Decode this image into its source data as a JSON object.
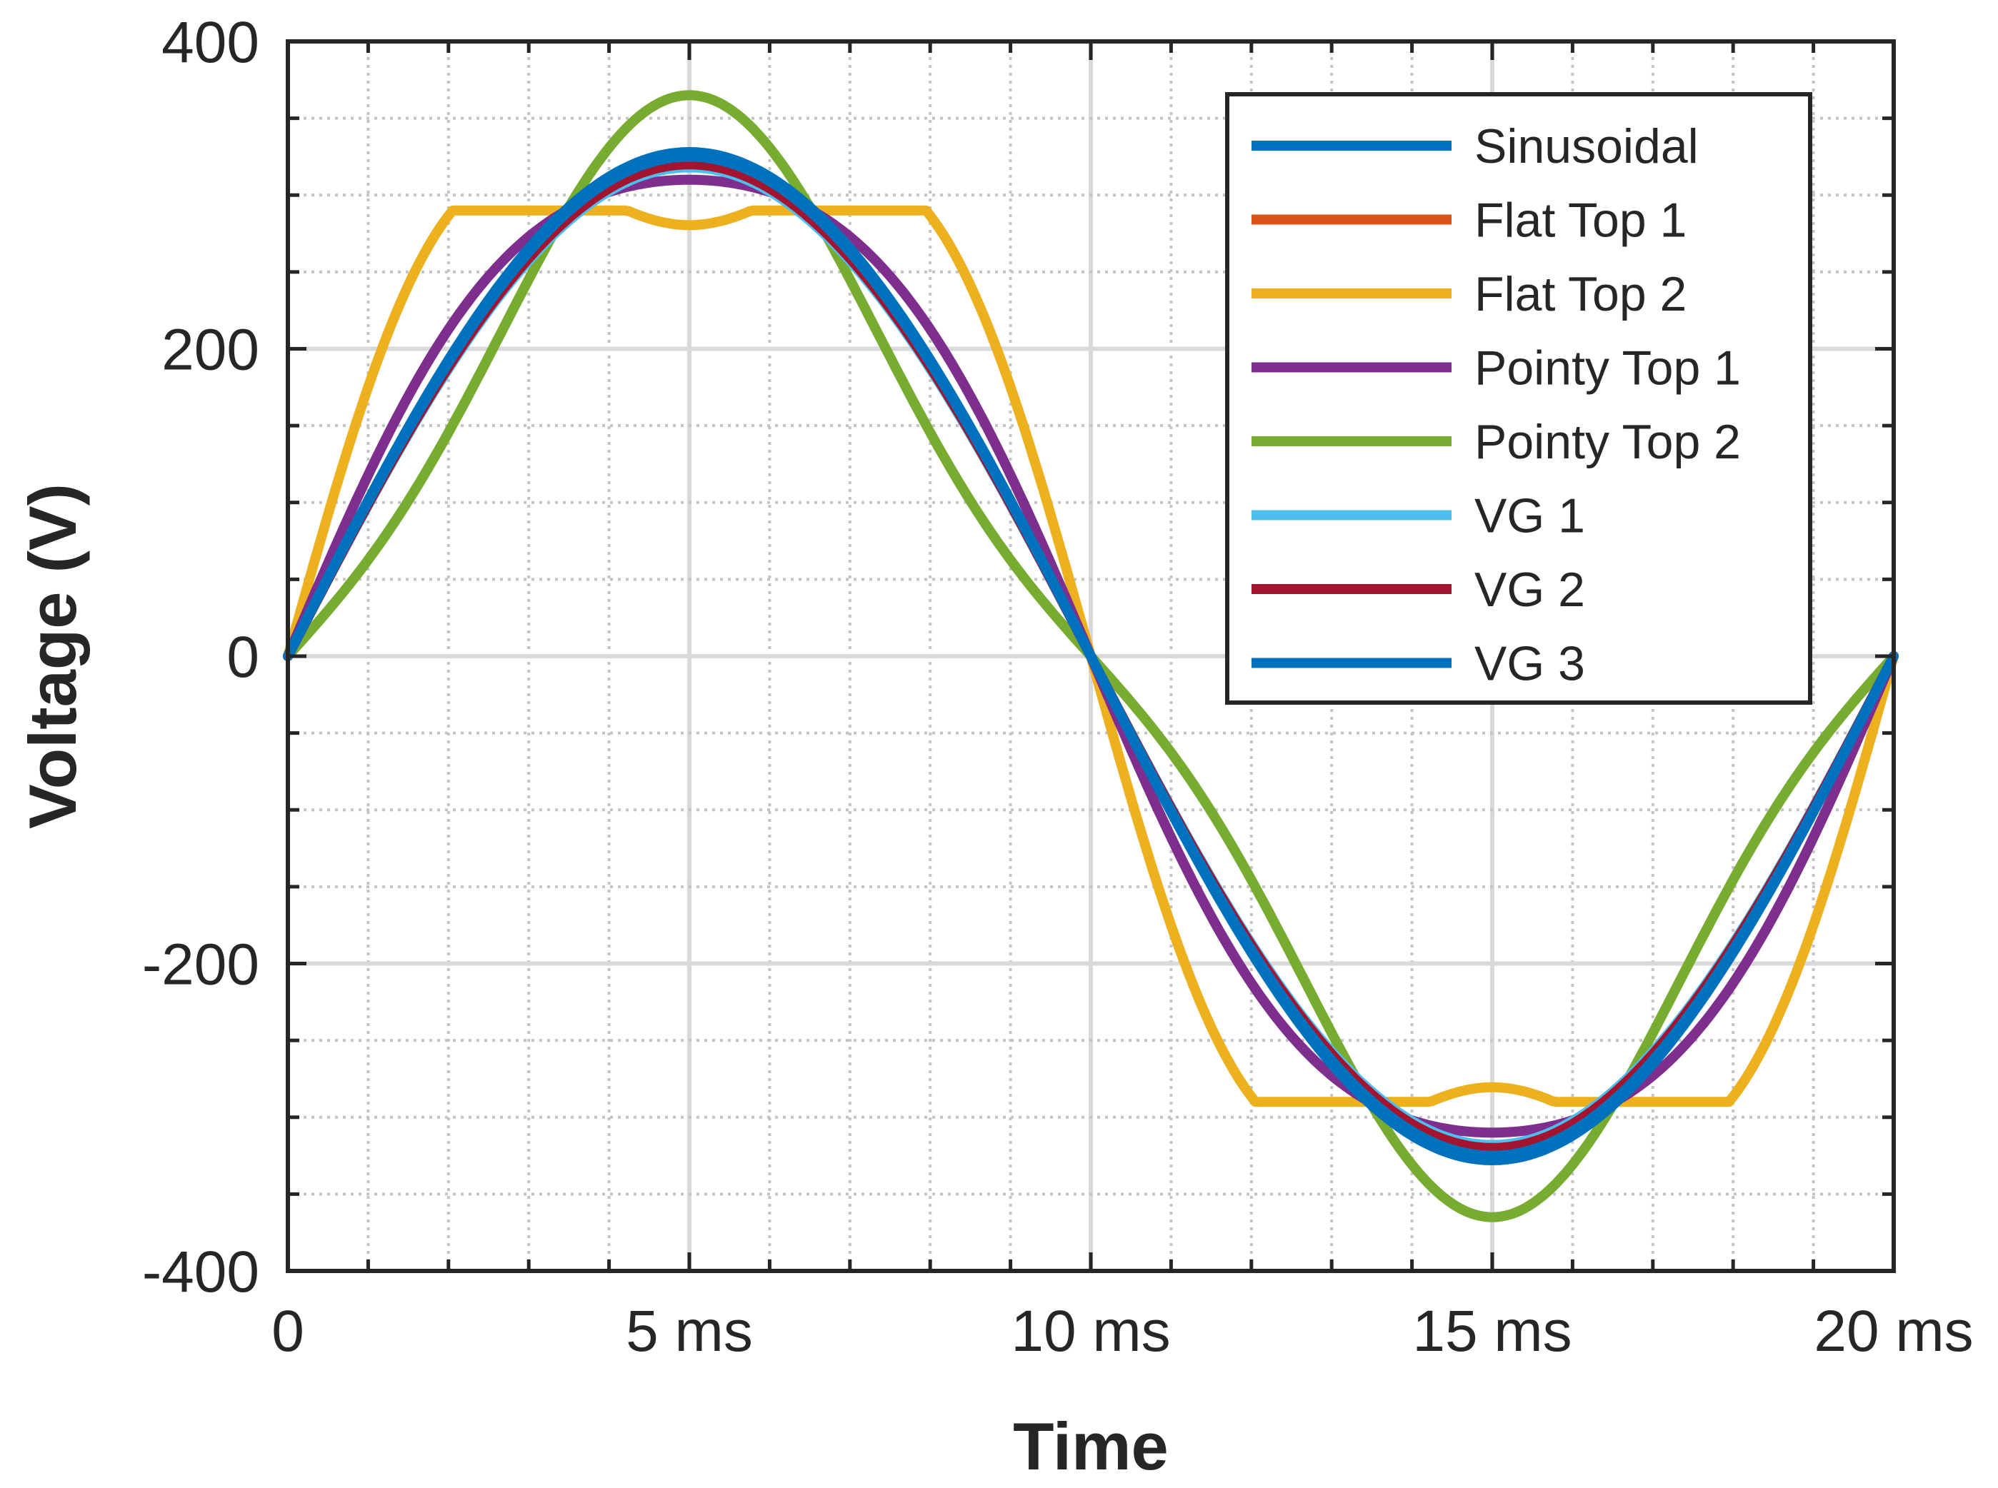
{
  "chart_data": {
    "type": "line",
    "title": "",
    "xlabel": "Time",
    "ylabel": "Voltage (V)",
    "xlim": [
      0,
      20
    ],
    "ylim": [
      -400,
      400
    ],
    "x_unit": "ms",
    "xticks": [
      0,
      5,
      10,
      15,
      20
    ],
    "xtick_labels": [
      "0",
      "5 ms",
      "10 ms",
      "15 ms",
      "20 ms"
    ],
    "yticks": [
      -400,
      -200,
      0,
      200,
      400
    ],
    "ytick_labels": [
      "-400",
      "-200",
      "0",
      "200",
      "400"
    ],
    "grid": true,
    "minor_grid": true,
    "legend_location": "top-right",
    "series": [
      {
        "name": "Sinusoidal",
        "color": "#0072BD",
        "shape": "sine",
        "peak": 325
      },
      {
        "name": "Flat Top 1",
        "color": "#D95319",
        "shape": "sine",
        "peak": 322
      },
      {
        "name": "Flat Top 2",
        "color": "#EDB120",
        "shape": "flat",
        "peak": 290
      },
      {
        "name": "Pointy Top 1",
        "color": "#7E2F8E",
        "shape": "flat-soft",
        "peak": 310
      },
      {
        "name": "Pointy Top 2",
        "color": "#77AC30",
        "shape": "pointy",
        "peak": 365
      },
      {
        "name": "VG 1",
        "color": "#4DBEEE",
        "shape": "sine",
        "peak": 318
      },
      {
        "name": "VG 2",
        "color": "#A2142F",
        "shape": "sine",
        "peak": 320
      },
      {
        "name": "VG 3",
        "color": "#0072BD",
        "shape": "sine",
        "peak": 328
      }
    ]
  }
}
